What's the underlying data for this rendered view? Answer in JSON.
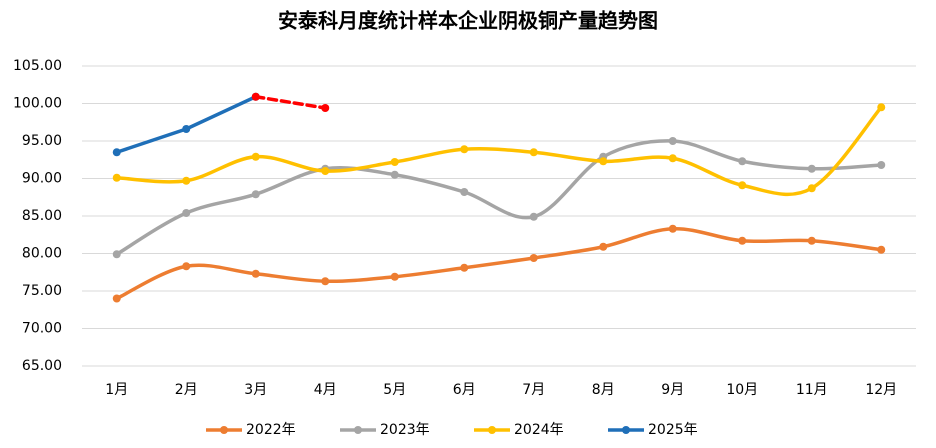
{
  "chart_data": {
    "type": "line",
    "title": "安泰科月度统计样本企业阴极铜产量趋势图",
    "categories": [
      "1月",
      "2月",
      "3月",
      "4月",
      "5月",
      "6月",
      "7月",
      "8月",
      "9月",
      "10月",
      "11月",
      "12月"
    ],
    "ylim": [
      65,
      105
    ],
    "yticks": [
      {
        "value": 65,
        "label": "65.00"
      },
      {
        "value": 70,
        "label": "70.00"
      },
      {
        "value": 75,
        "label": "75.00"
      },
      {
        "value": 80,
        "label": "80.00"
      },
      {
        "value": 85,
        "label": "85.00"
      },
      {
        "value": 90,
        "label": "90.00"
      },
      {
        "value": 95,
        "label": "95.00"
      },
      {
        "value": 100,
        "label": "100.00"
      },
      {
        "value": 105,
        "label": "105.00"
      }
    ],
    "grid": true,
    "legend": "bottom",
    "series": [
      {
        "name": "2022年",
        "color": "#ed7d31",
        "smooth": true,
        "values": [
          74.0,
          78.3,
          77.3,
          76.3,
          76.9,
          78.1,
          79.4,
          80.9,
          83.3,
          81.7,
          81.7,
          80.5
        ]
      },
      {
        "name": "2023年",
        "color": "#a5a5a5",
        "smooth": true,
        "values": [
          79.9,
          85.4,
          87.9,
          91.3,
          90.5,
          88.2,
          84.9,
          92.9,
          95.0,
          92.3,
          91.3,
          91.8
        ]
      },
      {
        "name": "2024年",
        "color": "#ffc000",
        "smooth": true,
        "values": [
          90.1,
          89.7,
          92.9,
          91.0,
          92.2,
          93.9,
          93.5,
          92.3,
          92.7,
          89.1,
          88.7,
          99.5
        ]
      },
      {
        "name": "2025年",
        "color": "#1f6fb8",
        "values": [
          93.5,
          96.6,
          100.9,
          null,
          null,
          null,
          null,
          null,
          null,
          null,
          null,
          null
        ]
      },
      {
        "color": "#ff0000",
        "dashed": true,
        "values": [
          null,
          null,
          100.9,
          99.4,
          null,
          null,
          null,
          null,
          null,
          null,
          null,
          null
        ]
      }
    ]
  }
}
